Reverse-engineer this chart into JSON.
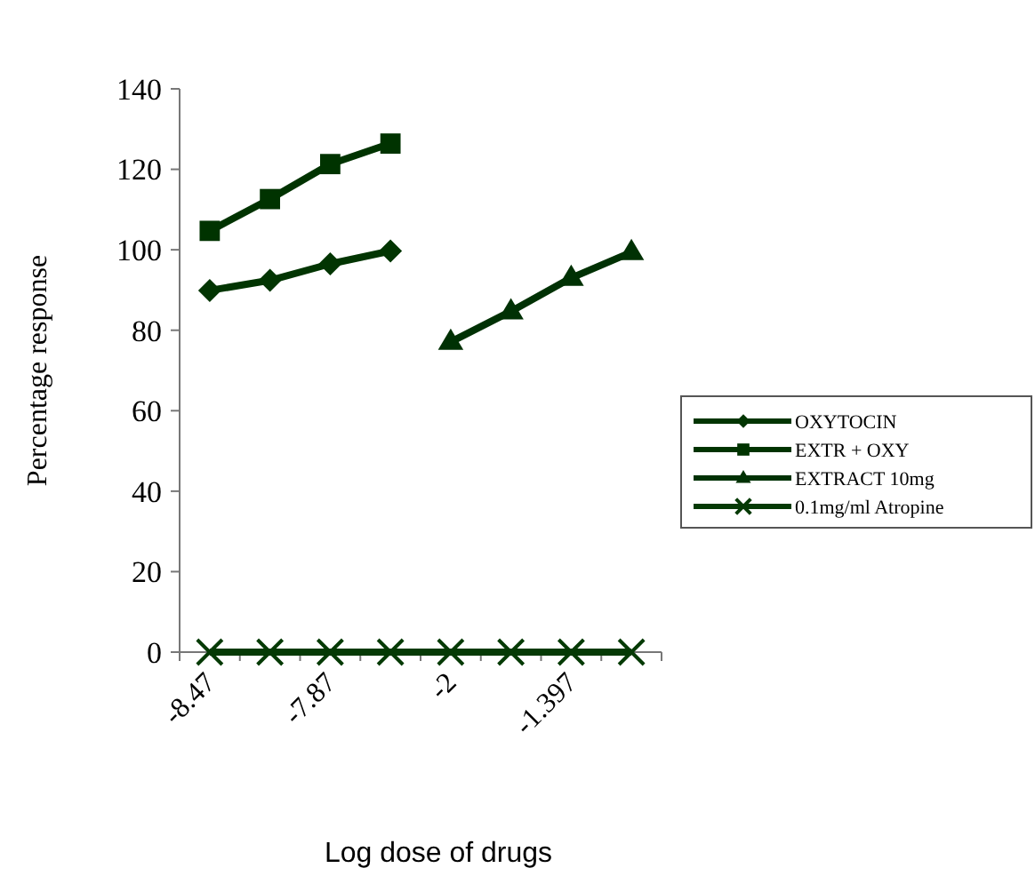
{
  "chart_data": {
    "type": "line",
    "xlabel": "Log dose of drugs",
    "ylabel": "Percentage response",
    "categories": [
      "-8.47",
      null,
      "-7.87",
      null,
      "-2",
      null,
      "-1.397",
      null
    ],
    "ylim": [
      0,
      140
    ],
    "yticks": [
      0,
      20,
      40,
      60,
      80,
      100,
      120,
      140
    ],
    "grid": false,
    "legend": "right",
    "series": [
      {
        "name": "OXYTOCIN",
        "color": "#023502",
        "marker": "diamond",
        "values": [
          89.9,
          92.4,
          96.5,
          99.7,
          null,
          null,
          null,
          null
        ]
      },
      {
        "name": "EXTR + OXY",
        "color": "#003300",
        "marker": "square",
        "values": [
          104.7,
          112.6,
          121.3,
          126.4,
          null,
          null,
          null,
          null
        ]
      },
      {
        "name": "EXTRACT 10mg",
        "color": "#003104",
        "marker": "triangle",
        "values": [
          null,
          null,
          null,
          null,
          77.1,
          84.7,
          93.0,
          99.4
        ]
      },
      {
        "name": "0.1mg/ml Atropine",
        "color": "#053a05",
        "marker": "cross",
        "values": [
          0,
          0,
          0,
          0,
          0,
          0,
          0,
          0
        ]
      }
    ]
  }
}
